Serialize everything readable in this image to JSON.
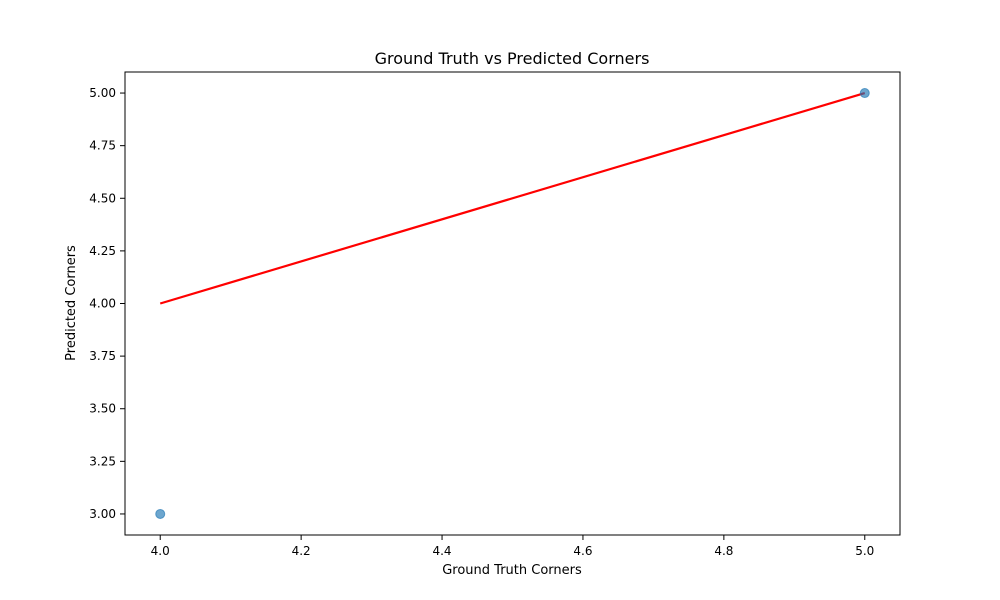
{
  "chart_data": {
    "type": "scatter",
    "title": "Ground Truth vs Predicted Corners",
    "xlabel": "Ground Truth Corners",
    "ylabel": "Predicted Corners",
    "xlim": [
      3.95,
      5.05
    ],
    "ylim": [
      2.9,
      5.1
    ],
    "x_ticks": [
      4.0,
      4.2,
      4.4,
      4.6,
      4.8,
      5.0
    ],
    "x_tick_labels": [
      "4.0",
      "4.2",
      "4.4",
      "4.6",
      "4.8",
      "5.0"
    ],
    "y_ticks": [
      3.0,
      3.25,
      3.5,
      3.75,
      4.0,
      4.25,
      4.5,
      4.75,
      5.0
    ],
    "y_tick_labels": [
      "3.00",
      "3.25",
      "3.50",
      "3.75",
      "4.00",
      "4.25",
      "4.50",
      "4.75",
      "5.00"
    ],
    "grid": false,
    "points": [
      {
        "x": 4.0,
        "y": 3.0
      },
      {
        "x": 5.0,
        "y": 5.0
      }
    ],
    "reference_line": {
      "x": [
        4.0,
        5.0
      ],
      "y": [
        4.0,
        5.0
      ],
      "color": "#ff0000"
    },
    "point_color": "#1f77b4"
  }
}
